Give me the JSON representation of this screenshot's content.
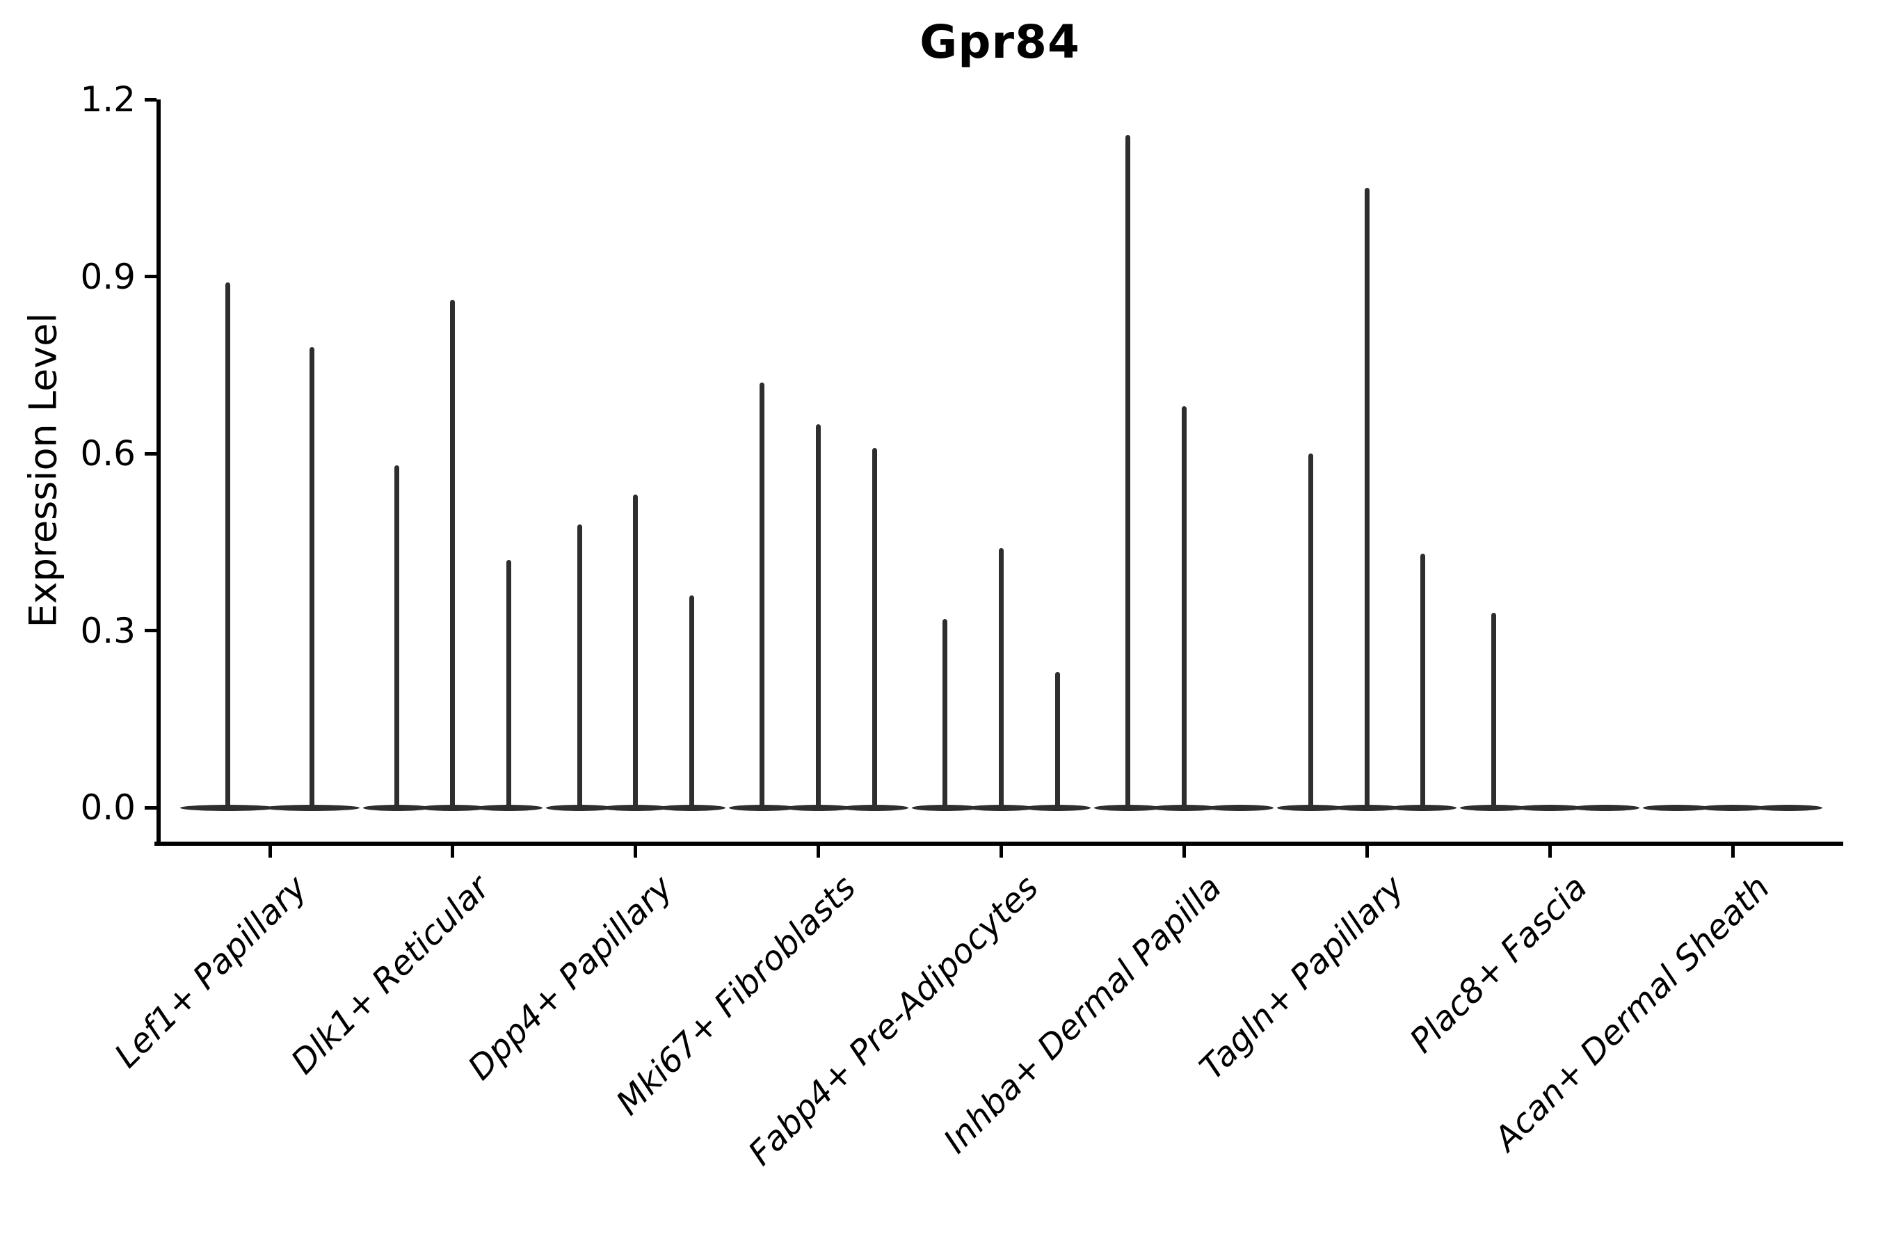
{
  "figure": {
    "background": "#ffffff"
  },
  "chart_data": {
    "type": "violin",
    "title": "Gpr84",
    "xlabel": "",
    "ylabel": "Expression Level",
    "ylim": [
      0,
      1.2
    ],
    "ytick_labels": [
      "0.0",
      "0.3",
      "0.6",
      "0.9",
      "1.2"
    ],
    "ytick_values": [
      0.0,
      0.3,
      0.6,
      0.9,
      1.2
    ],
    "grid": false,
    "legend": false,
    "xtick_rotation_deg": 45,
    "xtick_style": "italic",
    "categories": [
      "Lef1+ Papillary",
      "Dlk1+ Reticular",
      "Dpp4+ Papillary",
      "Mki67+ Fibroblasts",
      "Fabp4+ Pre-Adipocytes",
      "Inhba+ Dermal Papilla",
      "Tagln+ Papillary",
      "Plac8+ Fascia",
      "Acan+ Dermal Sheath"
    ],
    "series": [
      {
        "category": "Lef1+ Papillary",
        "violin_max_values": [
          0.89,
          0.78
        ]
      },
      {
        "category": "Dlk1+ Reticular",
        "violin_max_values": [
          0.58,
          0.86,
          0.42
        ]
      },
      {
        "category": "Dpp4+ Papillary",
        "violin_max_values": [
          0.48,
          0.53,
          0.36
        ]
      },
      {
        "category": "Mki67+ Fibroblasts",
        "violin_max_values": [
          0.72,
          0.65,
          0.61
        ]
      },
      {
        "category": "Fabp4+ Pre-Adipocytes",
        "violin_max_values": [
          0.32,
          0.44,
          0.23
        ]
      },
      {
        "category": "Inhba+ Dermal Papilla",
        "violin_max_values": [
          1.14,
          0.68,
          0.0
        ]
      },
      {
        "category": "Tagln+ Papillary",
        "violin_max_values": [
          0.6,
          1.05,
          0.43
        ]
      },
      {
        "category": "Plac8+ Fascia",
        "violin_max_values": [
          0.33,
          0.0,
          0.0
        ]
      },
      {
        "category": "Acan+ Dermal Sheath",
        "violin_max_values": [
          0.0,
          0.0,
          0.0
        ]
      }
    ],
    "shape_note": "Each violin is collapsed flat at expression 0 with a thin vertical spike reaching its maximum value",
    "colors": {
      "violin": "#2e2e2e",
      "axis": "#000000",
      "text": "#000000",
      "background": "#ffffff"
    }
  }
}
